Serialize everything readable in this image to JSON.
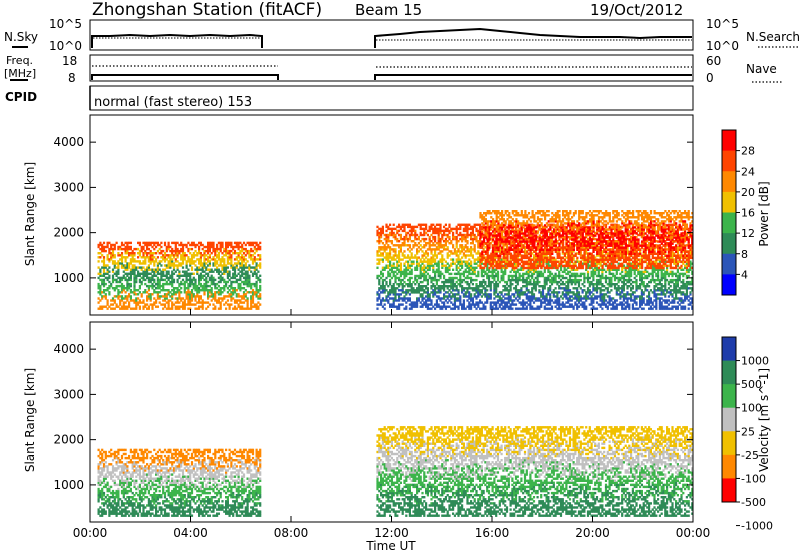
{
  "header": {
    "station": "Zhongshan Station (fitACF)",
    "beam": "Beam 15",
    "date": "19/Oct/2012"
  },
  "panels": {
    "nsky": {
      "label": "N.Sky",
      "left_ticks": [
        "10^5",
        "10^0"
      ],
      "right_label": "N.Search",
      "right_ticks": [
        "10^5",
        "10^0"
      ]
    },
    "freq": {
      "label_line1": "Freq.",
      "label_line2": "[MHz]",
      "left_ticks": [
        "18",
        "8"
      ],
      "right_label": "Nave",
      "right_ticks": [
        "60",
        "0"
      ]
    },
    "cpid": {
      "label": "CPID",
      "mode": "normal (fast stereo) 153"
    }
  },
  "colors": {
    "power": [
      "#0000ff",
      "#2b55b8",
      "#2e8b57",
      "#3cb44b",
      "#f0c000",
      "#ff8800",
      "#ff4400",
      "#ff0000"
    ],
    "velocity": [
      "#1e3caa",
      "#2e8b57",
      "#3cb44b",
      "#c0c0c0",
      "#f0c000",
      "#ff8800",
      "#ff0000"
    ]
  },
  "chart_data": [
    {
      "type": "heatmap",
      "name": "Power",
      "ylabel": "Slant Range [km]",
      "yticks": [
        1000,
        2000,
        3000,
        4000
      ],
      "ylim": [
        180,
        4600
      ],
      "xlim": [
        0,
        24
      ],
      "colorbar": {
        "label": "Power [dB]",
        "ticks": [
          "28",
          "24",
          "20",
          "16",
          "12",
          "8",
          "4"
        ],
        "colors": [
          "#ff0000",
          "#ff4400",
          "#ff8800",
          "#f0c000",
          "#3cb44b",
          "#2e8b57",
          "#2b55b8",
          "#0000ff"
        ]
      },
      "regions": [
        {
          "t0": 0.3,
          "t1": 6.8,
          "r0": 300,
          "r1": 1800,
          "levels": [
            2,
            4,
            5,
            3,
            1
          ]
        },
        {
          "t0": 11.4,
          "t1": 24,
          "r0": 300,
          "r1": 2200,
          "levels": [
            6,
            5,
            4,
            3,
            2,
            1
          ]
        },
        {
          "t0": 15.5,
          "t1": 24,
          "r0": 1200,
          "r1": 2500,
          "levels": [
            1,
            0,
            2
          ]
        }
      ]
    },
    {
      "type": "heatmap",
      "name": "Velocity",
      "ylabel": "Slant Range [km]",
      "yticks": [
        1000,
        2000,
        3000,
        4000
      ],
      "ylim": [
        180,
        4600
      ],
      "xlim": [
        0,
        24
      ],
      "xlabel": "Time UT",
      "xticks": [
        "00:00",
        "04:00",
        "08:00",
        "12:00",
        "16:00",
        "20:00",
        "00:00"
      ],
      "colorbar": {
        "label": "Velocity [m s^-1]",
        "ticks": [
          "1000",
          "500",
          "100",
          "25",
          "-25",
          "-100",
          "-500",
          "-1000"
        ],
        "colors": [
          "#1e3caa",
          "#2e8b57",
          "#3cb44b",
          "#c0c0c0",
          "#f0c000",
          "#ff8800",
          "#ff0000"
        ]
      },
      "regions": [
        {
          "t0": 0.3,
          "t1": 6.8,
          "r0": 300,
          "r1": 1800,
          "levels": [
            1,
            2,
            3,
            5
          ]
        },
        {
          "t0": 11.4,
          "t1": 24,
          "r0": 300,
          "r1": 2300,
          "levels": [
            1,
            2,
            3,
            4
          ]
        }
      ]
    }
  ]
}
